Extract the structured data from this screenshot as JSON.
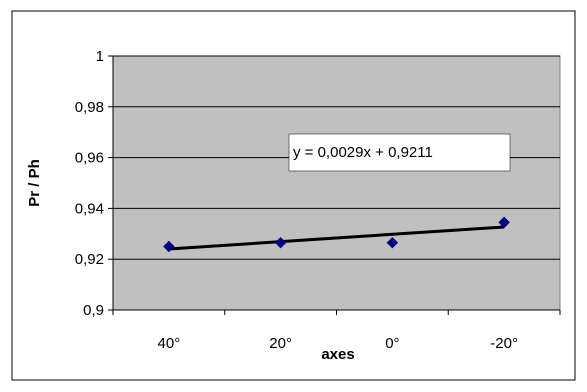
{
  "chart_data": {
    "type": "scatter",
    "xlabel": "axes",
    "ylabel": "Pr / Ph",
    "categories": [
      "40°",
      "20°",
      "0°",
      "-20°"
    ],
    "ylim": [
      0.9,
      1
    ],
    "yticks": [
      "0,9",
      "0,92",
      "0,94",
      "0,96",
      "0,98",
      "1"
    ],
    "ytick_values": [
      0.9,
      0.92,
      0.94,
      0.96,
      0.98,
      1
    ],
    "grid": true,
    "series": [
      {
        "values": [
          0.925,
          0.9265,
          0.9265,
          0.9345
        ]
      }
    ],
    "trendline": {
      "equation_label": "y = 0,0029x + 0,9211",
      "slope": 0.0029,
      "intercept": 0.9211
    },
    "colors": {
      "plot_area": "#c0c0c0",
      "marker": "#000080",
      "trendline": "#000000",
      "gridline": "#000000"
    }
  }
}
